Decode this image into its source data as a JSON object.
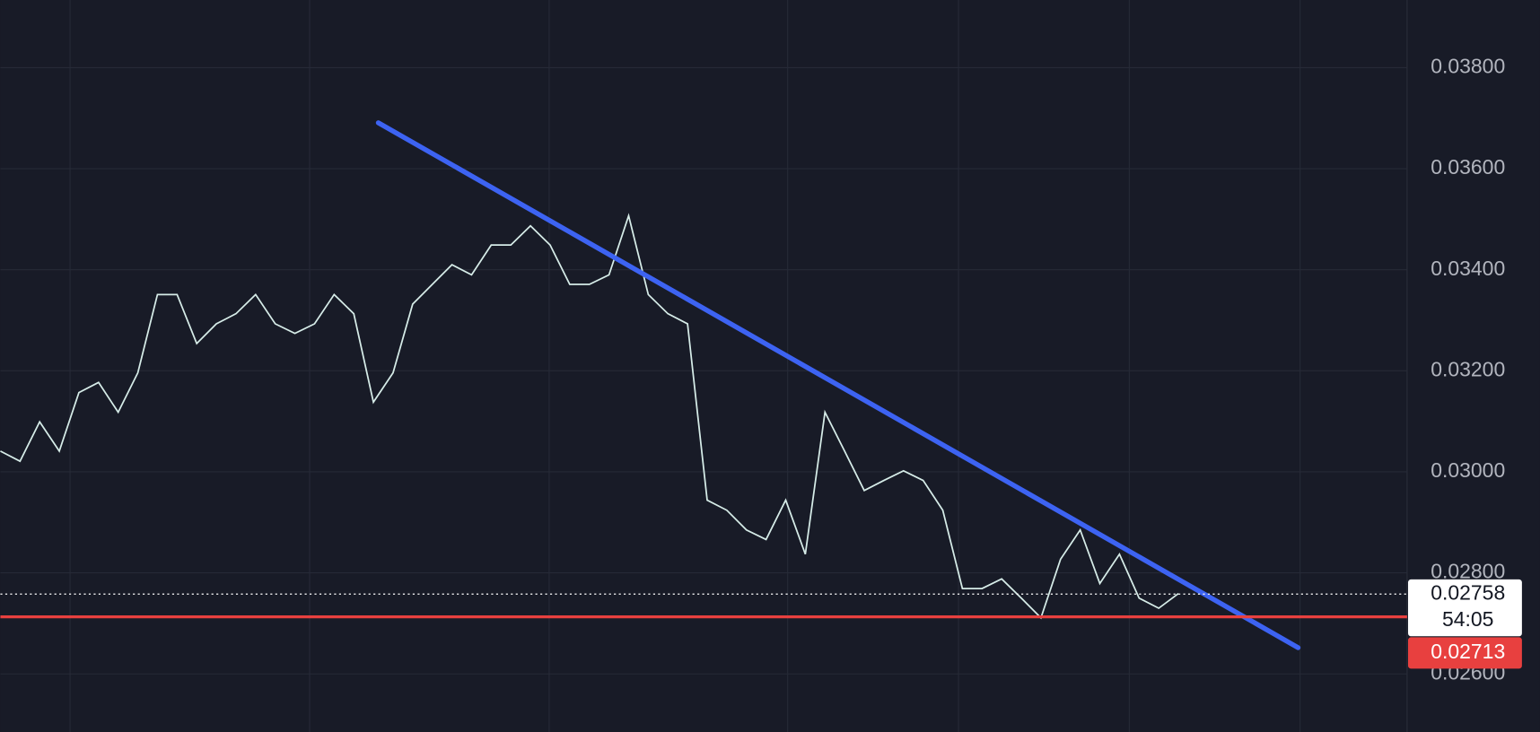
{
  "chart_data": {
    "type": "line",
    "series": [
      {
        "name": null,
        "color": "#d6ece8",
        "values": [
          0.03041,
          0.03021,
          0.03099,
          0.03041,
          0.03157,
          0.03177,
          0.03118,
          0.03196,
          0.03351,
          0.03351,
          0.03254,
          0.03293,
          0.03313,
          0.03351,
          0.03293,
          0.03274,
          0.03293,
          0.03351,
          0.03313,
          0.03138,
          0.03196,
          0.03332,
          0.03371,
          0.0341,
          0.0339,
          0.03449,
          0.03449,
          0.03487,
          0.03449,
          0.03371,
          0.03371,
          0.0339,
          0.03507,
          0.03351,
          0.03313,
          0.03293,
          0.02944,
          0.02924,
          0.02885,
          0.02866,
          0.02944,
          0.02837,
          0.03118,
          0.03041,
          0.02963,
          0.02983,
          0.03002,
          0.02983,
          0.02924,
          0.02769,
          0.02769,
          0.02788,
          0.0275,
          0.02711,
          0.02827,
          0.02885,
          0.02779,
          0.02837,
          0.0275,
          0.0273,
          0.02759
        ]
      }
    ],
    "trendline": {
      "color": "#3d63f2",
      "values": [
        0.03691,
        0.02652
      ]
    },
    "current_price": {
      "value": 0.02758,
      "label": "0.02758",
      "countdown": "54:05",
      "color": "#ffffff"
    },
    "level": {
      "value": 0.02713,
      "label": "0.02713",
      "color": "#e8403f"
    },
    "ylim": [
      0.02485,
      0.03934
    ],
    "yticks": [
      {
        "value": 0.026,
        "label": "0.02600"
      },
      {
        "value": 0.028,
        "label": "0.02800"
      },
      {
        "value": 0.03,
        "label": "0.03000"
      },
      {
        "value": 0.032,
        "label": "0.03200"
      },
      {
        "value": 0.034,
        "label": "0.03400"
      },
      {
        "value": 0.036,
        "label": "0.03600"
      },
      {
        "value": 0.038,
        "label": "0.03800"
      }
    ],
    "grid": true
  }
}
